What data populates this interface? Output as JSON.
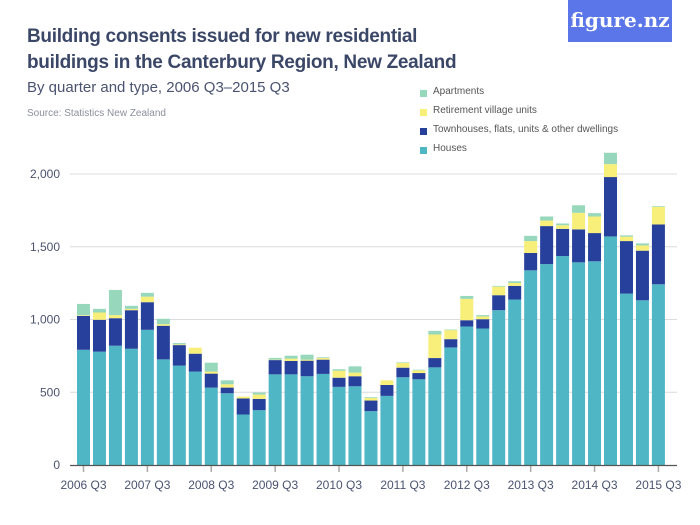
{
  "header": {
    "title": "Building consents issued for new residential buildings in the Canterbury Region, New Zealand",
    "subtitle": "By quarter and type, 2006 Q3–2015 Q3",
    "source": "Source: Statistics New Zealand",
    "logo": "figure.nz"
  },
  "chart_data": {
    "type": "bar",
    "stacked": true,
    "title": "Building consents issued for new residential buildings in the Canterbury Region, New Zealand",
    "subtitle": "By quarter and type, 2006 Q3–2015 Q3",
    "xlabel": "",
    "ylabel": "",
    "ylim": [
      0,
      2000
    ],
    "grid": true,
    "legend_position": "top-right",
    "yticks": [
      0,
      500,
      1000,
      1500,
      2000
    ],
    "ytick_labels": [
      "0",
      "500",
      "1,000",
      "1,500",
      "2,000"
    ],
    "xtick_labels": [
      "2006 Q3",
      "2007 Q3",
      "2008 Q3",
      "2009 Q3",
      "2010 Q3",
      "2011 Q3",
      "2012 Q3",
      "2013 Q3",
      "2014 Q3",
      "2015 Q3"
    ],
    "categories": [
      "2006 Q3",
      "2006 Q4",
      "2007 Q1",
      "2007 Q2",
      "2007 Q3",
      "2007 Q4",
      "2008 Q1",
      "2008 Q2",
      "2008 Q3",
      "2008 Q4",
      "2009 Q1",
      "2009 Q2",
      "2009 Q3",
      "2009 Q4",
      "2010 Q1",
      "2010 Q2",
      "2010 Q3",
      "2010 Q4",
      "2011 Q1",
      "2011 Q2",
      "2011 Q3",
      "2011 Q4",
      "2012 Q1",
      "2012 Q2",
      "2012 Q3",
      "2012 Q4",
      "2013 Q1",
      "2013 Q2",
      "2013 Q3",
      "2013 Q4",
      "2014 Q1",
      "2014 Q2",
      "2014 Q3",
      "2014 Q4",
      "2015 Q1",
      "2015 Q2",
      "2015 Q3"
    ],
    "series": [
      {
        "name": "Houses",
        "color": "#4fb6c5",
        "values": [
          792,
          779,
          820,
          799,
          929,
          726,
          683,
          642,
          532,
          493,
          347,
          377,
          623,
          623,
          610,
          626,
          537,
          541,
          370,
          475,
          603,
          589,
          671,
          808,
          952,
          938,
          1064,
          1137,
          1338,
          1381,
          1436,
          1393,
          1400,
          1571,
          1178,
          1132,
          1242
        ]
      },
      {
        "name": "Townhouses, flats, units & other dwellings",
        "color": "#27409b",
        "values": [
          233,
          219,
          189,
          265,
          190,
          231,
          141,
          123,
          96,
          39,
          110,
          77,
          98,
          92,
          107,
          98,
          63,
          69,
          73,
          75,
          66,
          43,
          64,
          57,
          43,
          64,
          103,
          94,
          119,
          261,
          187,
          226,
          194,
          408,
          361,
          341,
          411
        ]
      },
      {
        "name": "Retirement village units",
        "color": "#f8ef7a",
        "values": [
          5,
          50,
          21,
          9,
          38,
          11,
          5,
          41,
          14,
          23,
          13,
          30,
          3,
          16,
          7,
          11,
          48,
          25,
          18,
          32,
          32,
          19,
          162,
          62,
          147,
          19,
          59,
          20,
          82,
          38,
          25,
          114,
          114,
          89,
          30,
          36,
          121
        ]
      },
      {
        "name": "Apartments",
        "color": "#97d7bb",
        "values": [
          77,
          25,
          173,
          21,
          26,
          37,
          9,
          0,
          61,
          27,
          0,
          14,
          12,
          20,
          34,
          5,
          10,
          43,
          5,
          0,
          4,
          4,
          25,
          4,
          20,
          9,
          5,
          12,
          36,
          28,
          12,
          52,
          23,
          78,
          9,
          14,
          5
        ]
      }
    ]
  }
}
